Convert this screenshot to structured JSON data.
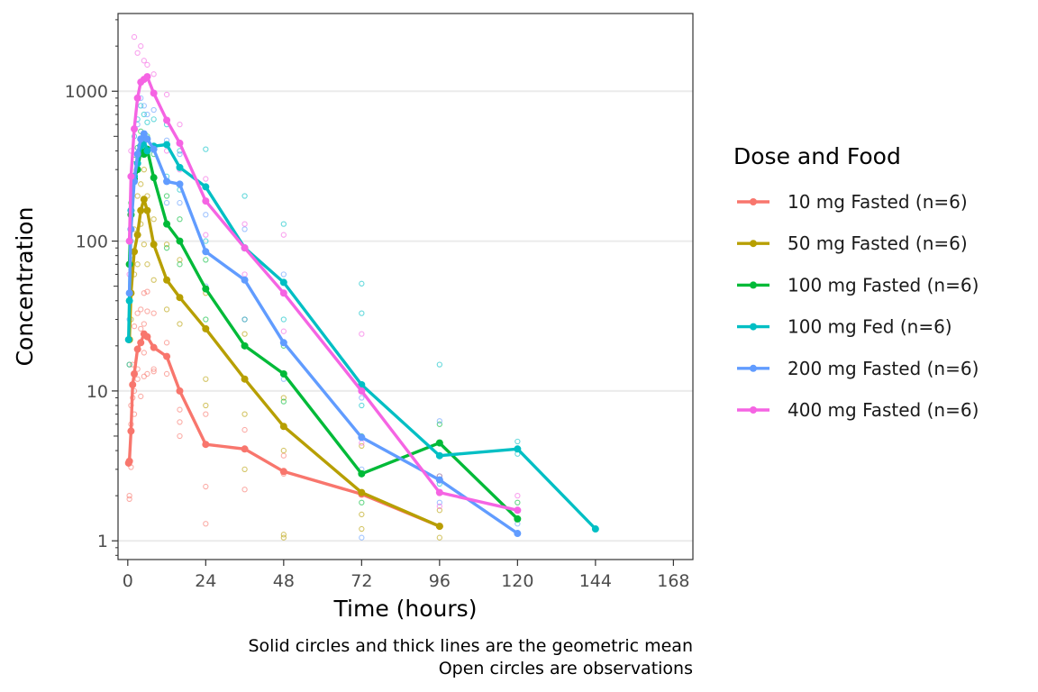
{
  "chart_data": {
    "type": "line",
    "xlabel": "Time (hours)",
    "ylabel": "Concentration",
    "y_scale": "log10",
    "xlim": [
      -3,
      174
    ],
    "ylim": [
      0.75,
      3300
    ],
    "x_ticks": [
      0,
      24,
      48,
      72,
      96,
      120,
      144,
      168
    ],
    "x_tick_labels": [
      "0",
      "24",
      "48",
      "72",
      "96",
      "120",
      "144",
      "168"
    ],
    "y_ticks": [
      1,
      10,
      100,
      1000
    ],
    "y_tick_labels": [
      "1",
      "10",
      "100",
      "1000"
    ],
    "grid": "horizontal major",
    "legend": {
      "title": "Dose and Food",
      "position": "right",
      "entries": [
        "10 mg Fasted (n=6)",
        "50 mg Fasted (n=6)",
        "100 mg Fasted (n=6)",
        "100 mg Fed (n=6)",
        "200 mg Fasted (n=6)",
        "400 mg Fasted (n=6)"
      ]
    },
    "caption": [
      "Solid circles and thick lines are the geometric mean",
      "Open circles are observations"
    ],
    "series": [
      {
        "name": "10 mg Fasted (n=6)",
        "color": "#F8766D",
        "mean": [
          [
            0.25,
            3.3
          ],
          [
            0.5,
            3.4
          ],
          [
            1,
            5.4
          ],
          [
            1.5,
            11
          ],
          [
            2,
            13
          ],
          [
            3,
            19
          ],
          [
            4,
            21
          ],
          [
            5,
            24
          ],
          [
            6,
            23
          ],
          [
            8,
            19.5
          ],
          [
            12,
            17
          ],
          [
            16,
            10
          ],
          [
            24,
            4.4
          ],
          [
            36,
            4.1
          ],
          [
            48,
            2.9
          ],
          [
            72,
            2.05
          ],
          [
            96,
            1.25
          ]
        ],
        "obs": [
          [
            0.5,
            2
          ],
          [
            0.5,
            1.9
          ],
          [
            1,
            3.1
          ],
          [
            1,
            6
          ],
          [
            1,
            8
          ],
          [
            1.5,
            15
          ],
          [
            1.5,
            9
          ],
          [
            2,
            27
          ],
          [
            2,
            10
          ],
          [
            2,
            7
          ],
          [
            3,
            33
          ],
          [
            3,
            14
          ],
          [
            3,
            12
          ],
          [
            4,
            35
          ],
          [
            4,
            26
          ],
          [
            4,
            9.2
          ],
          [
            5,
            45
          ],
          [
            5,
            28
          ],
          [
            5,
            18
          ],
          [
            5,
            12.5
          ],
          [
            6,
            46
          ],
          [
            6,
            34
          ],
          [
            6,
            13
          ],
          [
            8,
            33
          ],
          [
            8,
            14
          ],
          [
            8,
            13.5
          ],
          [
            12,
            21
          ],
          [
            12,
            13
          ],
          [
            16,
            7.5
          ],
          [
            16,
            5
          ],
          [
            16,
            6.2
          ],
          [
            24,
            2.3
          ],
          [
            24,
            1.3
          ],
          [
            24,
            7
          ],
          [
            36,
            5.5
          ],
          [
            36,
            2.2
          ],
          [
            48,
            3.7
          ],
          [
            48,
            2.8
          ]
        ]
      },
      {
        "name": "50 mg Fasted (n=6)",
        "color": "#B79F00",
        "mean": [
          [
            0.5,
            22
          ],
          [
            1,
            45
          ],
          [
            2,
            85
          ],
          [
            3,
            110
          ],
          [
            4,
            160
          ],
          [
            5,
            190
          ],
          [
            6,
            160
          ],
          [
            8,
            95
          ],
          [
            12,
            55
          ],
          [
            16,
            42
          ],
          [
            24,
            26
          ],
          [
            36,
            12
          ],
          [
            48,
            5.8
          ],
          [
            72,
            2.1
          ],
          [
            96,
            1.25
          ]
        ],
        "obs": [
          [
            0.5,
            15
          ],
          [
            1,
            30
          ],
          [
            2,
            60
          ],
          [
            2,
            120
          ],
          [
            3,
            200
          ],
          [
            3,
            70
          ],
          [
            4,
            240
          ],
          [
            4,
            130
          ],
          [
            5,
            300
          ],
          [
            5,
            95
          ],
          [
            6,
            200
          ],
          [
            6,
            70
          ],
          [
            8,
            140
          ],
          [
            8,
            55
          ],
          [
            12,
            95
          ],
          [
            12,
            35
          ],
          [
            16,
            75
          ],
          [
            16,
            28
          ],
          [
            24,
            45
          ],
          [
            24,
            12
          ],
          [
            24,
            8
          ],
          [
            36,
            24
          ],
          [
            36,
            7
          ],
          [
            36,
            3
          ],
          [
            48,
            9
          ],
          [
            48,
            4
          ],
          [
            48,
            1.1
          ],
          [
            48,
            1.05
          ],
          [
            72,
            4.3
          ],
          [
            72,
            1.5
          ],
          [
            72,
            1.2
          ],
          [
            96,
            1.6
          ],
          [
            96,
            1.05
          ]
        ]
      },
      {
        "name": "100 mg Fasted (n=6)",
        "color": "#00BA38",
        "mean": [
          [
            0.5,
            70
          ],
          [
            1,
            150
          ],
          [
            2,
            260
          ],
          [
            3,
            300
          ],
          [
            4,
            400
          ],
          [
            5,
            380
          ],
          [
            6,
            410
          ],
          [
            8,
            265
          ],
          [
            12,
            130
          ],
          [
            16,
            100
          ],
          [
            24,
            48
          ],
          [
            36,
            20
          ],
          [
            48,
            13
          ],
          [
            72,
            2.8
          ],
          [
            96,
            4.5
          ],
          [
            120,
            1.4
          ]
        ],
        "obs": [
          [
            1,
            180
          ],
          [
            2,
            350
          ],
          [
            3,
            420
          ],
          [
            4,
            540
          ],
          [
            5,
            480
          ],
          [
            6,
            500
          ],
          [
            8,
            380
          ],
          [
            12,
            200
          ],
          [
            12,
            90
          ],
          [
            16,
            140
          ],
          [
            16,
            70
          ],
          [
            24,
            75
          ],
          [
            24,
            30
          ],
          [
            36,
            30
          ],
          [
            36,
            12
          ],
          [
            48,
            20
          ],
          [
            48,
            8.5
          ],
          [
            72,
            5
          ],
          [
            72,
            1.8
          ],
          [
            96,
            6
          ],
          [
            96,
            2.7
          ],
          [
            120,
            1.8
          ]
        ]
      },
      {
        "name": "100 mg Fed (n=6)",
        "color": "#00BFC4",
        "mean": [
          [
            0.25,
            22
          ],
          [
            0.5,
            40
          ],
          [
            1,
            160
          ],
          [
            2,
            270
          ],
          [
            3,
            330
          ],
          [
            4,
            430
          ],
          [
            5,
            470
          ],
          [
            6,
            400
          ],
          [
            8,
            430
          ],
          [
            12,
            440
          ],
          [
            16,
            310
          ],
          [
            24,
            230
          ],
          [
            36,
            90
          ],
          [
            48,
            53
          ],
          [
            72,
            11
          ],
          [
            96,
            3.7
          ],
          [
            120,
            4.1
          ],
          [
            144,
            1.2
          ]
        ],
        "obs": [
          [
            0.5,
            15
          ],
          [
            1,
            100
          ],
          [
            2,
            500
          ],
          [
            3,
            650
          ],
          [
            4,
            800
          ],
          [
            5,
            700
          ],
          [
            6,
            620
          ],
          [
            8,
            650
          ],
          [
            12,
            600
          ],
          [
            12,
            270
          ],
          [
            16,
            400
          ],
          [
            16,
            220
          ],
          [
            24,
            410
          ],
          [
            24,
            100
          ],
          [
            36,
            200
          ],
          [
            36,
            55
          ],
          [
            48,
            130
          ],
          [
            48,
            30
          ],
          [
            72,
            52
          ],
          [
            72,
            33
          ],
          [
            72,
            8
          ],
          [
            96,
            15
          ],
          [
            96,
            2.4
          ],
          [
            120,
            4.6
          ],
          [
            120,
            3.8
          ]
        ]
      },
      {
        "name": "200 mg Fasted (n=6)",
        "color": "#619CFF",
        "mean": [
          [
            0.5,
            45
          ],
          [
            1,
            120
          ],
          [
            2,
            250
          ],
          [
            3,
            380
          ],
          [
            4,
            480
          ],
          [
            5,
            520
          ],
          [
            6,
            480
          ],
          [
            8,
            410
          ],
          [
            12,
            250
          ],
          [
            16,
            240
          ],
          [
            24,
            85
          ],
          [
            36,
            55
          ],
          [
            48,
            21
          ],
          [
            72,
            4.9
          ],
          [
            96,
            2.55
          ],
          [
            120,
            1.12
          ]
        ],
        "obs": [
          [
            0.5,
            30
          ],
          [
            1,
            80
          ],
          [
            2,
            400
          ],
          [
            3,
            600
          ],
          [
            4,
            900
          ],
          [
            5,
            800
          ],
          [
            6,
            700
          ],
          [
            8,
            750
          ],
          [
            12,
            470
          ],
          [
            12,
            180
          ],
          [
            16,
            380
          ],
          [
            16,
            180
          ],
          [
            24,
            150
          ],
          [
            24,
            50
          ],
          [
            36,
            120
          ],
          [
            36,
            30
          ],
          [
            48,
            60
          ],
          [
            48,
            12
          ],
          [
            72,
            9
          ],
          [
            72,
            3
          ],
          [
            72,
            1.05
          ],
          [
            96,
            6.3
          ],
          [
            96,
            1.8
          ],
          [
            120,
            1.3
          ]
        ]
      },
      {
        "name": "400 mg Fasted (n=6)",
        "color": "#F564E3",
        "mean": [
          [
            0.5,
            100
          ],
          [
            1,
            270
          ],
          [
            2,
            560
          ],
          [
            3,
            900
          ],
          [
            4,
            1150
          ],
          [
            5,
            1200
          ],
          [
            6,
            1250
          ],
          [
            8,
            970
          ],
          [
            12,
            640
          ],
          [
            16,
            450
          ],
          [
            24,
            185
          ],
          [
            36,
            90
          ],
          [
            48,
            45
          ],
          [
            72,
            10
          ],
          [
            96,
            2.1
          ],
          [
            120,
            1.6
          ]
        ],
        "obs": [
          [
            0.5,
            60
          ],
          [
            1,
            400
          ],
          [
            2,
            2300
          ],
          [
            3,
            1800
          ],
          [
            4,
            2000
          ],
          [
            5,
            1600
          ],
          [
            6,
            1500
          ],
          [
            8,
            1300
          ],
          [
            12,
            950
          ],
          [
            12,
            400
          ],
          [
            16,
            600
          ],
          [
            16,
            300
          ],
          [
            24,
            260
          ],
          [
            24,
            110
          ],
          [
            36,
            130
          ],
          [
            36,
            60
          ],
          [
            48,
            110
          ],
          [
            48,
            25
          ],
          [
            72,
            24
          ],
          [
            72,
            4.5
          ],
          [
            96,
            2.7
          ],
          [
            96,
            1.7
          ],
          [
            120,
            2
          ]
        ]
      }
    ]
  }
}
